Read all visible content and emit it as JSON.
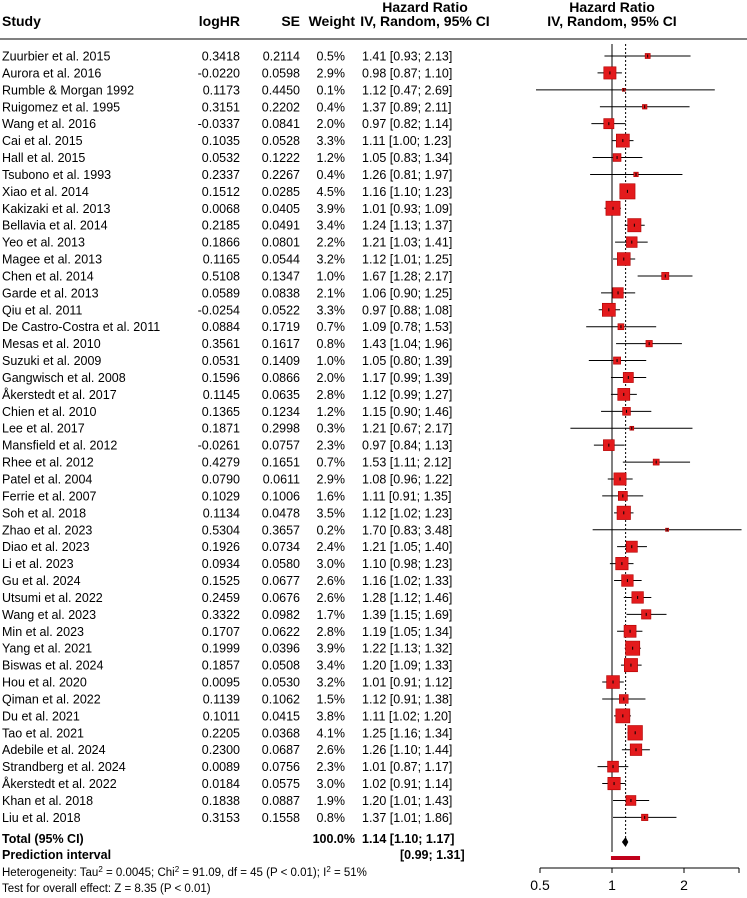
{
  "chart_data": {
    "type": "forest",
    "headers": {
      "study": "Study",
      "loghr": "logHR",
      "se": "SE",
      "weight": "Weight",
      "hr_col_line1": "Hazard Ratio",
      "hr_col_line2": "IV, Random, 95% CI",
      "plot_line1": "Hazard Ratio",
      "plot_line2": "IV, Random, 95% CI"
    },
    "studies": [
      {
        "study": "Zuurbier  et al. 2015",
        "loghr": "0.3418",
        "se": "0.2114",
        "weight": "0.5%",
        "ci": "1.41 [0.93; 2.13]",
        "hr": 1.41,
        "lo": 0.93,
        "hi": 2.13,
        "w": 0.5
      },
      {
        "study": "Aurora et al. 2016",
        "loghr": "-0.0220",
        "se": "0.0598",
        "weight": "2.9%",
        "ci": "0.98 [0.87; 1.10]",
        "hr": 0.98,
        "lo": 0.87,
        "hi": 1.1,
        "w": 2.9
      },
      {
        "study": "Rumble &  Morgan 1992",
        "loghr": "0.1173",
        "se": "0.4450",
        "weight": "0.1%",
        "ci": "1.12 [0.47; 2.69]",
        "hr": 1.12,
        "lo": 0.47,
        "hi": 2.69,
        "w": 0.1
      },
      {
        "study": "Ruigomez et al. 1995",
        "loghr": "0.3151",
        "se": "0.2202",
        "weight": "0.4%",
        "ci": "1.37 [0.89; 2.11]",
        "hr": 1.37,
        "lo": 0.89,
        "hi": 2.11,
        "w": 0.4
      },
      {
        "study": "Wang et al. 2016",
        "loghr": "-0.0337",
        "se": "0.0841",
        "weight": "2.0%",
        "ci": "0.97 [0.82; 1.14]",
        "hr": 0.97,
        "lo": 0.82,
        "hi": 1.14,
        "w": 2.0
      },
      {
        "study": "Cai et al. 2015",
        "loghr": "0.1035",
        "se": "0.0528",
        "weight": "3.3%",
        "ci": "1.11 [1.00; 1.23]",
        "hr": 1.11,
        "lo": 1.0,
        "hi": 1.23,
        "w": 3.3
      },
      {
        "study": "Hall et al.  2015",
        "loghr": "0.0532",
        "se": "0.1222",
        "weight": "1.2%",
        "ci": "1.05 [0.83; 1.34]",
        "hr": 1.05,
        "lo": 0.83,
        "hi": 1.34,
        "w": 1.2
      },
      {
        "study": "Tsubono et al. 1993",
        "loghr": "0.2337",
        "se": "0.2267",
        "weight": "0.4%",
        "ci": "1.26 [0.81; 1.97]",
        "hr": 1.26,
        "lo": 0.81,
        "hi": 1.97,
        "w": 0.4
      },
      {
        "study": "Xiao et al. 2014",
        "loghr": "0.1512",
        "se": "0.0285",
        "weight": "4.5%",
        "ci": "1.16 [1.10; 1.23]",
        "hr": 1.16,
        "lo": 1.1,
        "hi": 1.23,
        "w": 4.5
      },
      {
        "study": "Kakizaki et al.  2013",
        "loghr": "0.0068",
        "se": "0.0405",
        "weight": "3.9%",
        "ci": "1.01 [0.93; 1.09]",
        "hr": 1.01,
        "lo": 0.93,
        "hi": 1.09,
        "w": 3.9
      },
      {
        "study": "Bellavia et al.  2014",
        "loghr": "0.2185",
        "se": "0.0491",
        "weight": "3.4%",
        "ci": "1.24 [1.13; 1.37]",
        "hr": 1.24,
        "lo": 1.13,
        "hi": 1.37,
        "w": 3.4
      },
      {
        "study": "Yeo et al. 2013",
        "loghr": "0.1866",
        "se": "0.0801",
        "weight": "2.2%",
        "ci": "1.21 [1.03; 1.41]",
        "hr": 1.21,
        "lo": 1.03,
        "hi": 1.41,
        "w": 2.2
      },
      {
        "study": "Magee et al. 2013",
        "loghr": "0.1165",
        "se": "0.0544",
        "weight": "3.2%",
        "ci": "1.12 [1.01; 1.25]",
        "hr": 1.12,
        "lo": 1.01,
        "hi": 1.25,
        "w": 3.2
      },
      {
        "study": "Chen et al. 2014",
        "loghr": "0.5108",
        "se": "0.1347",
        "weight": "1.0%",
        "ci": "1.67 [1.28; 2.17]",
        "hr": 1.67,
        "lo": 1.28,
        "hi": 2.17,
        "w": 1.0
      },
      {
        "study": "Garde et al.  2013",
        "loghr": "0.0589",
        "se": "0.0838",
        "weight": "2.1%",
        "ci": "1.06 [0.90; 1.25]",
        "hr": 1.06,
        "lo": 0.9,
        "hi": 1.25,
        "w": 2.1
      },
      {
        "study": "Qiu et al. 2011",
        "loghr": "-0.0254",
        "se": "0.0522",
        "weight": "3.3%",
        "ci": "0.97 [0.88; 1.08]",
        "hr": 0.97,
        "lo": 0.88,
        "hi": 1.08,
        "w": 3.3
      },
      {
        "study": "De Castro-Costra et al. 2011",
        "loghr": "0.0884",
        "se": "0.1719",
        "weight": "0.7%",
        "ci": "1.09 [0.78; 1.53]",
        "hr": 1.09,
        "lo": 0.78,
        "hi": 1.53,
        "w": 0.7
      },
      {
        "study": "Mesas et al. 2010",
        "loghr": "0.3561",
        "se": "0.1617",
        "weight": "0.8%",
        "ci": "1.43 [1.04; 1.96]",
        "hr": 1.43,
        "lo": 1.04,
        "hi": 1.96,
        "w": 0.8
      },
      {
        "study": "Suzuki et al. 2009",
        "loghr": "0.0531",
        "se": "0.1409",
        "weight": "1.0%",
        "ci": "1.05 [0.80; 1.39]",
        "hr": 1.05,
        "lo": 0.8,
        "hi": 1.39,
        "w": 1.0
      },
      {
        "study": "Gangwisch et al. 2008",
        "loghr": "0.1596",
        "se": "0.0866",
        "weight": "2.0%",
        "ci": "1.17 [0.99; 1.39]",
        "hr": 1.17,
        "lo": 0.99,
        "hi": 1.39,
        "w": 2.0
      },
      {
        "study": "Åkerstedt et al. 2017",
        "loghr": "0.1145",
        "se": "0.0635",
        "weight": "2.8%",
        "ci": "1.12 [0.99; 1.27]",
        "hr": 1.12,
        "lo": 0.99,
        "hi": 1.27,
        "w": 2.8
      },
      {
        "study": "Chien et al. 2010",
        "loghr": "0.1365",
        "se": "0.1234",
        "weight": "1.2%",
        "ci": "1.15 [0.90; 1.46]",
        "hr": 1.15,
        "lo": 0.9,
        "hi": 1.46,
        "w": 1.2
      },
      {
        "study": "Lee et al. 2017",
        "loghr": "0.1871",
        "se": "0.2998",
        "weight": "0.3%",
        "ci": "1.21 [0.67; 2.17]",
        "hr": 1.21,
        "lo": 0.67,
        "hi": 2.17,
        "w": 0.3
      },
      {
        "study": "Mansfield et al.  2012",
        "loghr": "-0.0261",
        "se": "0.0757",
        "weight": "2.3%",
        "ci": "0.97 [0.84; 1.13]",
        "hr": 0.97,
        "lo": 0.84,
        "hi": 1.13,
        "w": 2.3
      },
      {
        "study": "Rhee et al. 2012",
        "loghr": "0.4279",
        "se": "0.1651",
        "weight": "0.7%",
        "ci": "1.53 [1.11; 2.12]",
        "hr": 1.53,
        "lo": 1.11,
        "hi": 2.12,
        "w": 0.7
      },
      {
        "study": "Patel et al. 2004",
        "loghr": "0.0790",
        "se": "0.0611",
        "weight": "2.9%",
        "ci": "1.08 [0.96; 1.22]",
        "hr": 1.08,
        "lo": 0.96,
        "hi": 1.22,
        "w": 2.9
      },
      {
        "study": "Ferrie et al.  2007",
        "loghr": "0.1029",
        "se": "0.1006",
        "weight": "1.6%",
        "ci": "1.11 [0.91; 1.35]",
        "hr": 1.11,
        "lo": 0.91,
        "hi": 1.35,
        "w": 1.6
      },
      {
        "study": "Soh et al.  2018",
        "loghr": "0.1134",
        "se": "0.0478",
        "weight": "3.5%",
        "ci": "1.12 [1.02; 1.23]",
        "hr": 1.12,
        "lo": 1.02,
        "hi": 1.23,
        "w": 3.5
      },
      {
        "study": "Zhao et al. 2023",
        "loghr": "0.5304",
        "se": "0.3657",
        "weight": "0.2%",
        "ci": "1.70 [0.83; 3.48]",
        "hr": 1.7,
        "lo": 0.83,
        "hi": 3.48,
        "w": 0.2
      },
      {
        "study": "Diao et al. 2023",
        "loghr": "0.1926",
        "se": "0.0734",
        "weight": "2.4%",
        "ci": "1.21 [1.05; 1.40]",
        "hr": 1.21,
        "lo": 1.05,
        "hi": 1.4,
        "w": 2.4
      },
      {
        "study": "Li et al. 2023",
        "loghr": "0.0934",
        "se": "0.0580",
        "weight": "3.0%",
        "ci": "1.10 [0.98; 1.23]",
        "hr": 1.1,
        "lo": 0.98,
        "hi": 1.23,
        "w": 3.0
      },
      {
        "study": "Gu et al. 2024",
        "loghr": "0.1525",
        "se": "0.0677",
        "weight": "2.6%",
        "ci": "1.16 [1.02; 1.33]",
        "hr": 1.16,
        "lo": 1.02,
        "hi": 1.33,
        "w": 2.6
      },
      {
        "study": "Utsumi et al. 2022",
        "loghr": "0.2459",
        "se": "0.0676",
        "weight": "2.6%",
        "ci": "1.28 [1.12; 1.46]",
        "hr": 1.28,
        "lo": 1.12,
        "hi": 1.46,
        "w": 2.6
      },
      {
        "study": "Wang et al. 2023",
        "loghr": "0.3322",
        "se": "0.0982",
        "weight": "1.7%",
        "ci": "1.39 [1.15; 1.69]",
        "hr": 1.39,
        "lo": 1.15,
        "hi": 1.69,
        "w": 1.7
      },
      {
        "study": "Min et al. 2023",
        "loghr": "0.1707",
        "se": "0.0622",
        "weight": "2.8%",
        "ci": "1.19 [1.05; 1.34]",
        "hr": 1.19,
        "lo": 1.05,
        "hi": 1.34,
        "w": 2.8
      },
      {
        "study": "Yang et al. 2021",
        "loghr": "0.1999",
        "se": "0.0396",
        "weight": "3.9%",
        "ci": "1.22 [1.13; 1.32]",
        "hr": 1.22,
        "lo": 1.13,
        "hi": 1.32,
        "w": 3.9
      },
      {
        "study": "Biswas et al. 2024",
        "loghr": "0.1857",
        "se": "0.0508",
        "weight": "3.4%",
        "ci": "1.20 [1.09; 1.33]",
        "hr": 1.2,
        "lo": 1.09,
        "hi": 1.33,
        "w": 3.4
      },
      {
        "study": "Hou et al.  2020",
        "loghr": "0.0095",
        "se": "0.0530",
        "weight": "3.2%",
        "ci": "1.01 [0.91; 1.12]",
        "hr": 1.01,
        "lo": 0.91,
        "hi": 1.12,
        "w": 3.2
      },
      {
        "study": "Qiman et al. 2022",
        "loghr": "0.1139",
        "se": "0.1062",
        "weight": "1.5%",
        "ci": "1.12 [0.91; 1.38]",
        "hr": 1.12,
        "lo": 0.91,
        "hi": 1.38,
        "w": 1.5
      },
      {
        "study": "Du et al. 2021",
        "loghr": "0.1011",
        "se": "0.0415",
        "weight": "3.8%",
        "ci": "1.11 [1.02; 1.20]",
        "hr": 1.11,
        "lo": 1.02,
        "hi": 1.2,
        "w": 3.8
      },
      {
        "study": "Tao et al. 2021",
        "loghr": "0.2205",
        "se": "0.0368",
        "weight": "4.1%",
        "ci": "1.25 [1.16; 1.34]",
        "hr": 1.25,
        "lo": 1.16,
        "hi": 1.34,
        "w": 4.1
      },
      {
        "study": "Adebile et al. 2024",
        "loghr": "0.2300",
        "se": "0.0687",
        "weight": "2.6%",
        "ci": "1.26 [1.10; 1.44]",
        "hr": 1.26,
        "lo": 1.1,
        "hi": 1.44,
        "w": 2.6
      },
      {
        "study": "Strandberg et al. 2024",
        "loghr": "0.0089",
        "se": "0.0756",
        "weight": "2.3%",
        "ci": "1.01 [0.87; 1.17]",
        "hr": 1.01,
        "lo": 0.87,
        "hi": 1.17,
        "w": 2.3
      },
      {
        "study": "Åkerstedt et  al. 2022",
        "loghr": "0.0184",
        "se": "0.0575",
        "weight": "3.0%",
        "ci": "1.02 [0.91; 1.14]",
        "hr": 1.02,
        "lo": 0.91,
        "hi": 1.14,
        "w": 3.0
      },
      {
        "study": "Khan et al. 2018",
        "loghr": "0.1838",
        "se": "0.0887",
        "weight": "1.9%",
        "ci": "1.20 [1.01; 1.43]",
        "hr": 1.2,
        "lo": 1.01,
        "hi": 1.43,
        "w": 1.9
      },
      {
        "study": "Liu et al. 2018",
        "loghr": "0.3153",
        "se": "0.1558",
        "weight": "0.8%",
        "ci": "1.37 [1.01; 1.86]",
        "hr": 1.37,
        "lo": 1.01,
        "hi": 1.86,
        "w": 0.8
      }
    ],
    "total": {
      "label": "Total (95% CI)",
      "weight": "100.0%",
      "ci": "1.14 [1.10; 1.17]",
      "hr": 1.14,
      "lo": 1.1,
      "hi": 1.17
    },
    "prediction": {
      "label": "Prediction interval",
      "ci": "[0.99; 1.31]",
      "lo": 0.99,
      "hi": 1.31
    },
    "heterogeneity": {
      "prefix": "Heterogeneity: Tau",
      "tau_sup": "2",
      "tau_val": " = 0.0045; Chi",
      "chi_sup": "2",
      "chi_val": " = 91.09, df = 45 (P < 0.01); I",
      "i_sup": "2",
      "i_val": " = 51%"
    },
    "overall_test": "Test for overall effect: Z = 8.35 (P < 0.01)",
    "x_axis": {
      "scale": "log",
      "ticks": [
        0.5,
        1,
        2
      ],
      "tick_labels": [
        "0.5",
        "1",
        "2"
      ],
      "ref_line": 1
    },
    "colors": {
      "box": "#e31a1c",
      "box_edge": "#b00000",
      "diamond": "#000000",
      "pred": "#c0001a"
    }
  }
}
